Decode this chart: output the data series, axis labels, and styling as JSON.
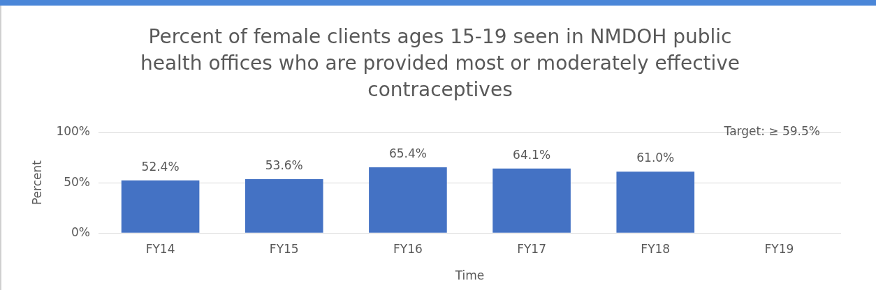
{
  "chart_data": {
    "type": "bar",
    "title": "Percent of female clients ages 15-19 seen in NMDOH public health offices who are provided most or moderately effective contraceptives",
    "xlabel": "Time",
    "ylabel": "Percent",
    "categories": [
      "FY14",
      "FY15",
      "FY16",
      "FY17",
      "FY18",
      "FY19"
    ],
    "values": [
      52.4,
      53.6,
      65.4,
      64.1,
      61.0,
      null
    ],
    "value_labels": [
      "52.4%",
      "53.6%",
      "65.4%",
      "64.1%",
      "61.0%",
      null
    ],
    "color": "#4472c4",
    "ylim": [
      0,
      100
    ],
    "yticks": [
      {
        "value": 0,
        "label": "0%"
      },
      {
        "value": 50,
        "label": "50%"
      },
      {
        "value": 100,
        "label": "100%"
      }
    ],
    "grid": "y",
    "annotations": [
      "Target: ≥ 59.5%"
    ]
  }
}
